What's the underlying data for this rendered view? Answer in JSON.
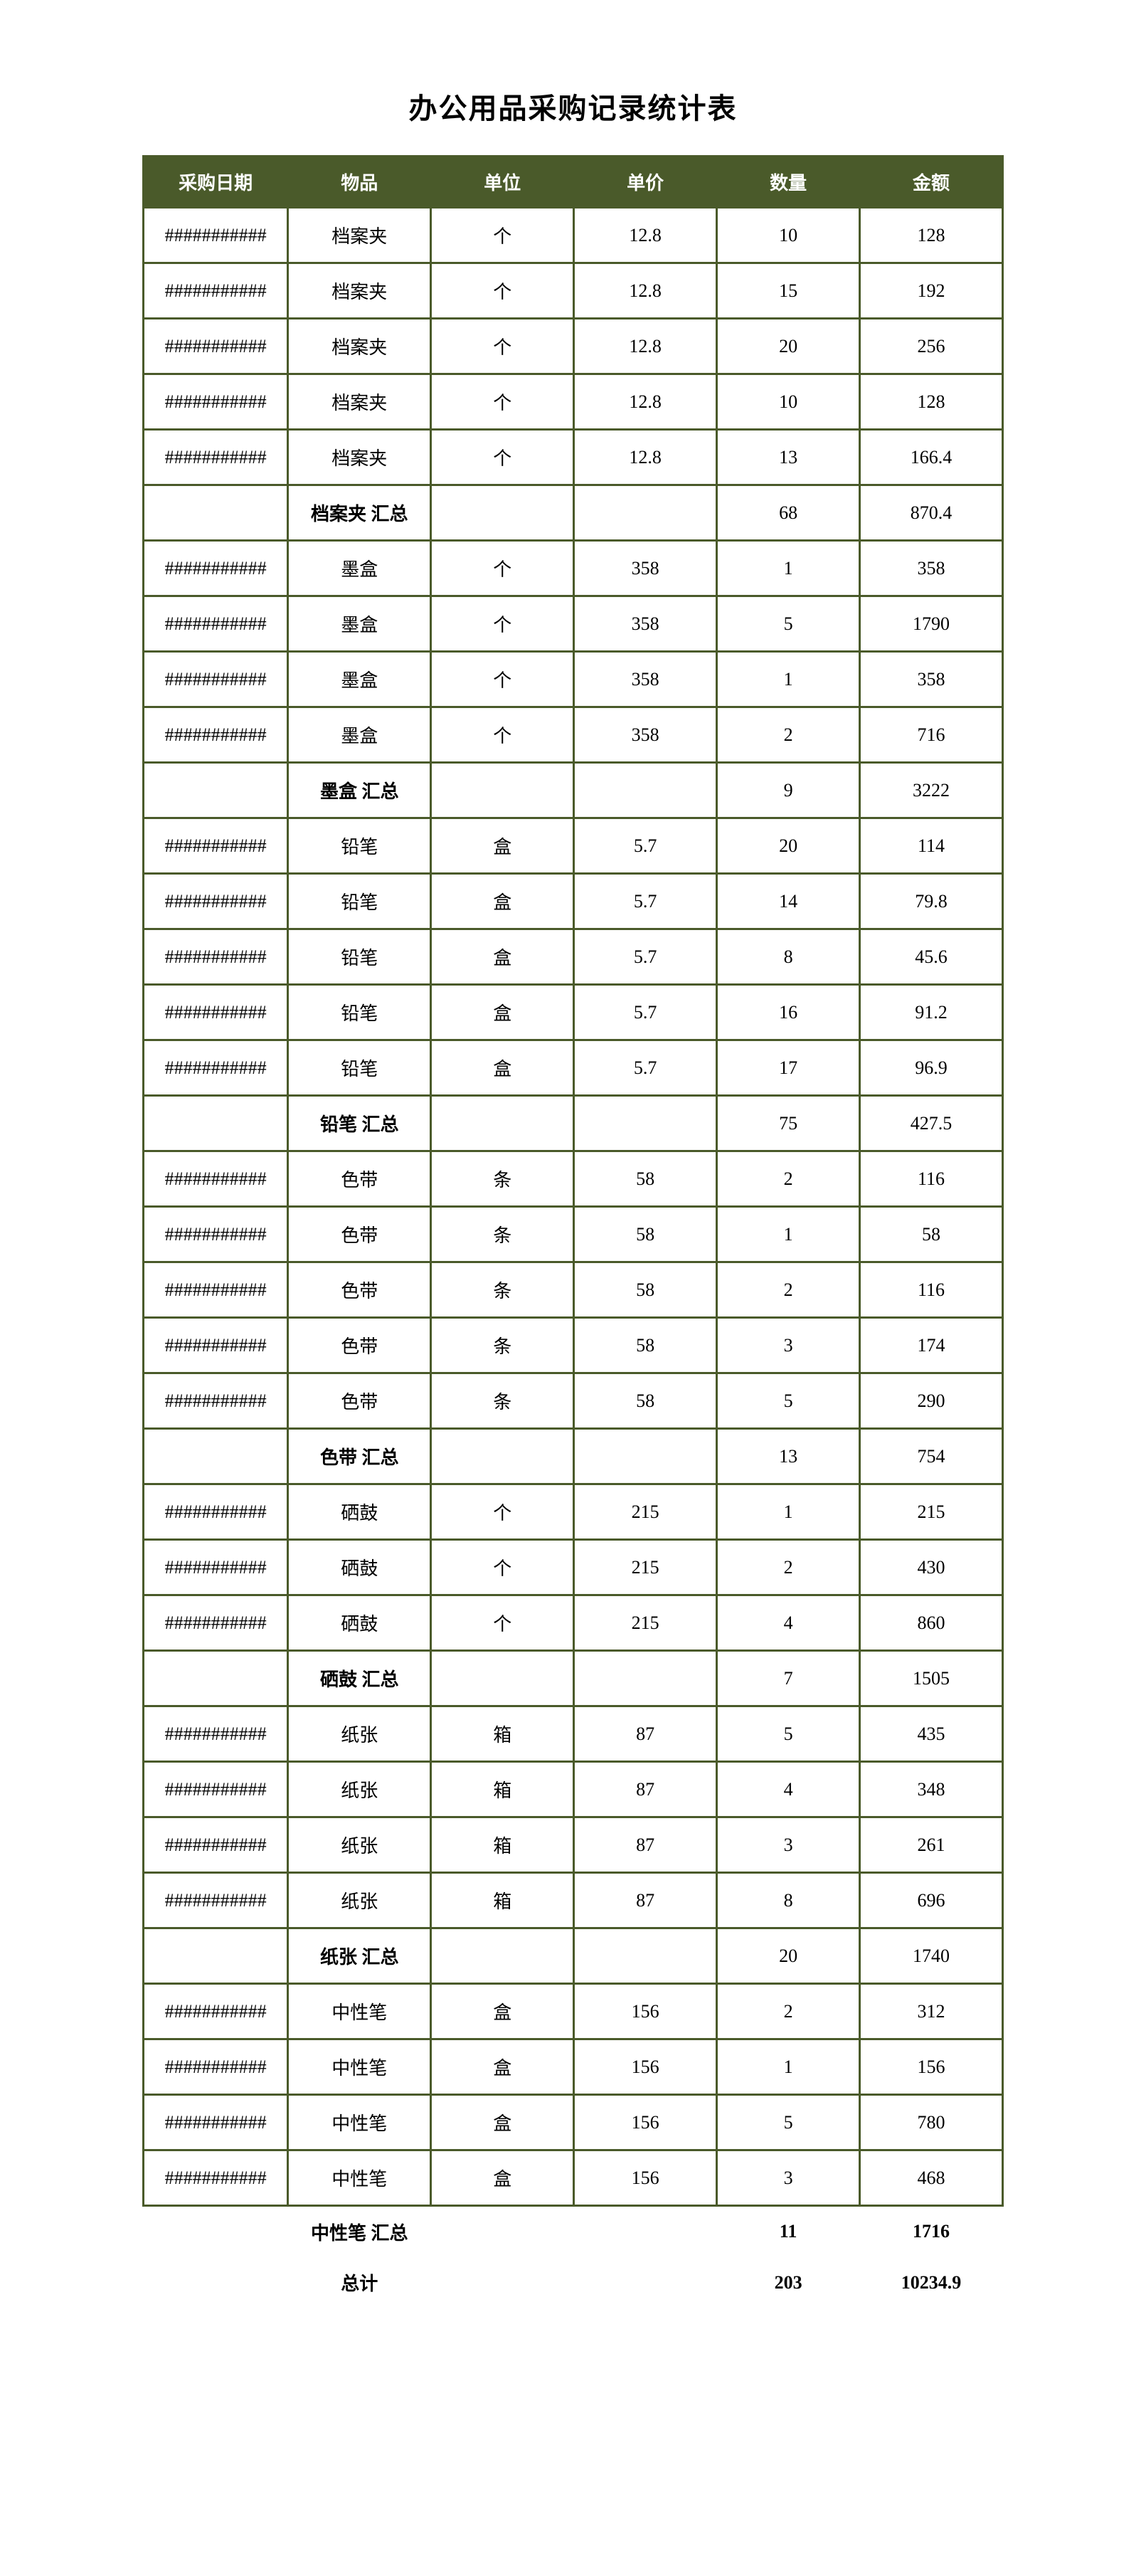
{
  "title": "办公用品采购记录统计表",
  "headers": {
    "date": "采购日期",
    "item": "物品",
    "unit": "单位",
    "price": "单价",
    "qty": "数量",
    "amount": "金额"
  },
  "overflow": "###########",
  "rows": [
    {
      "kind": "data",
      "date": "###########",
      "item": "档案夹",
      "unit": "个",
      "price": "12.8",
      "qty": "10",
      "amount": "128"
    },
    {
      "kind": "data",
      "date": "###########",
      "item": "档案夹",
      "unit": "个",
      "price": "12.8",
      "qty": "15",
      "amount": "192"
    },
    {
      "kind": "data",
      "date": "###########",
      "item": "档案夹",
      "unit": "个",
      "price": "12.8",
      "qty": "20",
      "amount": "256"
    },
    {
      "kind": "data",
      "date": "###########",
      "item": "档案夹",
      "unit": "个",
      "price": "12.8",
      "qty": "10",
      "amount": "128"
    },
    {
      "kind": "data",
      "date": "###########",
      "item": "档案夹",
      "unit": "个",
      "price": "12.8",
      "qty": "13",
      "amount": "166.4"
    },
    {
      "kind": "summary",
      "date": "",
      "item": "档案夹 汇总",
      "unit": "",
      "price": "",
      "qty": "68",
      "amount": "870.4"
    },
    {
      "kind": "data",
      "date": "###########",
      "item": "墨盒",
      "unit": "个",
      "price": "358",
      "qty": "1",
      "amount": "358"
    },
    {
      "kind": "data",
      "date": "###########",
      "item": "墨盒",
      "unit": "个",
      "price": "358",
      "qty": "5",
      "amount": "1790"
    },
    {
      "kind": "data",
      "date": "###########",
      "item": "墨盒",
      "unit": "个",
      "price": "358",
      "qty": "1",
      "amount": "358"
    },
    {
      "kind": "data",
      "date": "###########",
      "item": "墨盒",
      "unit": "个",
      "price": "358",
      "qty": "2",
      "amount": "716"
    },
    {
      "kind": "summary",
      "date": "",
      "item": "墨盒 汇总",
      "unit": "",
      "price": "",
      "qty": "9",
      "amount": "3222"
    },
    {
      "kind": "data",
      "date": "###########",
      "item": "铅笔",
      "unit": "盒",
      "price": "5.7",
      "qty": "20",
      "amount": "114"
    },
    {
      "kind": "data",
      "date": "###########",
      "item": "铅笔",
      "unit": "盒",
      "price": "5.7",
      "qty": "14",
      "amount": "79.8"
    },
    {
      "kind": "data",
      "date": "###########",
      "item": "铅笔",
      "unit": "盒",
      "price": "5.7",
      "qty": "8",
      "amount": "45.6"
    },
    {
      "kind": "data",
      "date": "###########",
      "item": "铅笔",
      "unit": "盒",
      "price": "5.7",
      "qty": "16",
      "amount": "91.2"
    },
    {
      "kind": "data",
      "date": "###########",
      "item": "铅笔",
      "unit": "盒",
      "price": "5.7",
      "qty": "17",
      "amount": "96.9"
    },
    {
      "kind": "summary",
      "date": "",
      "item": "铅笔 汇总",
      "unit": "",
      "price": "",
      "qty": "75",
      "amount": "427.5"
    },
    {
      "kind": "data",
      "date": "###########",
      "item": "色带",
      "unit": "条",
      "price": "58",
      "qty": "2",
      "amount": "116"
    },
    {
      "kind": "data",
      "date": "###########",
      "item": "色带",
      "unit": "条",
      "price": "58",
      "qty": "1",
      "amount": "58"
    },
    {
      "kind": "data",
      "date": "###########",
      "item": "色带",
      "unit": "条",
      "price": "58",
      "qty": "2",
      "amount": "116"
    },
    {
      "kind": "data",
      "date": "###########",
      "item": "色带",
      "unit": "条",
      "price": "58",
      "qty": "3",
      "amount": "174"
    },
    {
      "kind": "data",
      "date": "###########",
      "item": "色带",
      "unit": "条",
      "price": "58",
      "qty": "5",
      "amount": "290"
    },
    {
      "kind": "summary",
      "date": "",
      "item": "色带 汇总",
      "unit": "",
      "price": "",
      "qty": "13",
      "amount": "754"
    },
    {
      "kind": "data",
      "date": "###########",
      "item": "硒鼓",
      "unit": "个",
      "price": "215",
      "qty": "1",
      "amount": "215"
    },
    {
      "kind": "data",
      "date": "###########",
      "item": "硒鼓",
      "unit": "个",
      "price": "215",
      "qty": "2",
      "amount": "430"
    },
    {
      "kind": "data",
      "date": "###########",
      "item": "硒鼓",
      "unit": "个",
      "price": "215",
      "qty": "4",
      "amount": "860"
    },
    {
      "kind": "summary",
      "date": "",
      "item": "硒鼓 汇总",
      "unit": "",
      "price": "",
      "qty": "7",
      "amount": "1505"
    },
    {
      "kind": "data",
      "date": "###########",
      "item": "纸张",
      "unit": "箱",
      "price": "87",
      "qty": "5",
      "amount": "435"
    },
    {
      "kind": "data",
      "date": "###########",
      "item": "纸张",
      "unit": "箱",
      "price": "87",
      "qty": "4",
      "amount": "348"
    },
    {
      "kind": "data",
      "date": "###########",
      "item": "纸张",
      "unit": "箱",
      "price": "87",
      "qty": "3",
      "amount": "261"
    },
    {
      "kind": "data",
      "date": "###########",
      "item": "纸张",
      "unit": "箱",
      "price": "87",
      "qty": "8",
      "amount": "696"
    },
    {
      "kind": "summary",
      "date": "",
      "item": "纸张 汇总",
      "unit": "",
      "price": "",
      "qty": "20",
      "amount": "1740"
    },
    {
      "kind": "data",
      "date": "###########",
      "item": "中性笔",
      "unit": "盒",
      "price": "156",
      "qty": "2",
      "amount": "312"
    },
    {
      "kind": "data",
      "date": "###########",
      "item": "中性笔",
      "unit": "盒",
      "price": "156",
      "qty": "1",
      "amount": "156"
    },
    {
      "kind": "data",
      "date": "###########",
      "item": "中性笔",
      "unit": "盒",
      "price": "156",
      "qty": "5",
      "amount": "780"
    },
    {
      "kind": "data",
      "date": "###########",
      "item": "中性笔",
      "unit": "盒",
      "price": "156",
      "qty": "3",
      "amount": "468"
    }
  ],
  "footerRows": [
    {
      "item": "中性笔 汇总",
      "qty": "11",
      "amount": "1716"
    },
    {
      "item": "总计",
      "qty": "203",
      "amount": "10234.9"
    }
  ]
}
